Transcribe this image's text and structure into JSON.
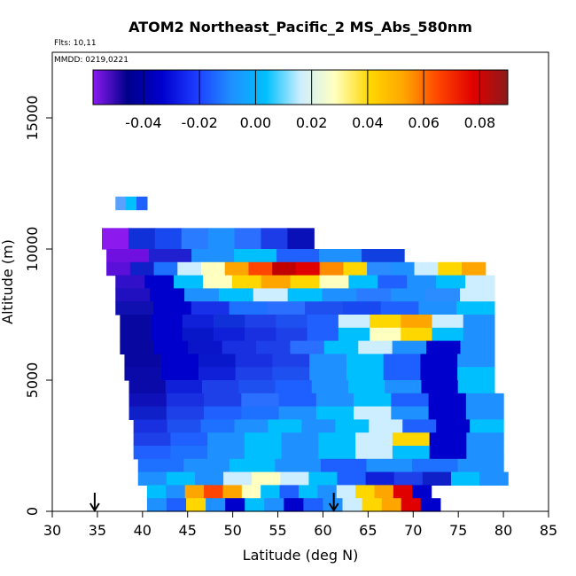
{
  "chart_data": {
    "type": "heatmap",
    "title": "ATOM2 Northeast_Pacific_2 MS_Abs_580nm",
    "flights_note": "Flts: 10,11",
    "dates_note": "MMDD: 0219,0221",
    "xlabel": "Latitude (deg N)",
    "ylabel": "Altitude (m)",
    "xlim": [
      30,
      85
    ],
    "ylim": [
      0,
      17500
    ],
    "x_ticks": [
      "30",
      "35",
      "40",
      "45",
      "50",
      "55",
      "60",
      "65",
      "70",
      "75",
      "80",
      "85"
    ],
    "y_ticks": [
      "0",
      "5000",
      "10000",
      "15000"
    ],
    "colorbar": {
      "range": [
        -0.058,
        0.09
      ],
      "tick_values": [
        -0.04,
        -0.02,
        0.0,
        0.02,
        0.04,
        0.06,
        0.08
      ],
      "tick_labels": [
        "-0.04",
        "-0.02",
        "0.00",
        "0.02",
        "0.04",
        "0.06",
        "0.08"
      ],
      "colors": [
        "#8c1aef",
        "#00008b",
        "#0000cd",
        "#1e3cff",
        "#1e90ff",
        "#00bfff",
        "#cdeeff",
        "#ffffc0",
        "#ffd700",
        "#ffa500",
        "#ff4500",
        "#e00000",
        "#8b1a1a"
      ]
    },
    "markers": [
      {
        "x": 34.7,
        "label": "down-arrow"
      },
      {
        "x": 61.2,
        "label": "down-arrow"
      }
    ],
    "bands": [
      {
        "alt": [
          11500,
          12000
        ],
        "lat": [
          37,
          40.5
        ],
        "colors": [
          "#5aa0ff",
          "#00bfff",
          "#2060ff"
        ]
      },
      {
        "alt": [
          10000,
          10800
        ],
        "lat": [
          35.5,
          59
        ],
        "colors": [
          "#8c1aef",
          "#1030d8",
          "#1848f0",
          "#2a7bff",
          "#1e90ff",
          "#2a6fff",
          "#1c3ce8",
          "#0a10b8"
        ]
      },
      {
        "alt": [
          9500,
          10000
        ],
        "lat": [
          36,
          69
        ],
        "colors": [
          "#7010e0",
          "#2020d0",
          "#1e90ff",
          "#00bfff",
          "#2060ff",
          "#1e90ff",
          "#1040e0"
        ]
      },
      {
        "alt": [
          9000,
          9500
        ],
        "lat": [
          36,
          78
        ],
        "colors": [
          "#5a10d8",
          "#1020c8",
          "#1e70ff",
          "#cdeeff",
          "#ffffc0",
          "#ffa500",
          "#ff4500",
          "#c00000",
          "#e00000",
          "#ff8c00",
          "#ffd700",
          "#2a8cff",
          "#1e90ff",
          "#cdeeff",
          "#ffd700",
          "#ffa500"
        ]
      },
      {
        "alt": [
          8500,
          9000
        ],
        "lat": [
          37,
          79
        ],
        "colors": [
          "#3010c8",
          "#0000cd",
          "#00bfff",
          "#ffffc0",
          "#ffd700",
          "#ffa500",
          "#ffd700",
          "#ffffc0",
          "#00bfff",
          "#2060ff",
          "#1e90ff",
          "#00bfff",
          "#cdeeff"
        ]
      },
      {
        "alt": [
          8000,
          8500
        ],
        "lat": [
          37,
          79
        ],
        "colors": [
          "#2010c0",
          "#0000cd",
          "#1e90ff",
          "#00bfff",
          "#cdeeff",
          "#00bfff",
          "#1e90ff",
          "#2a7bff",
          "#1e90ff",
          "#2a8cff",
          "#cdeeff"
        ]
      },
      {
        "alt": [
          7500,
          8000
        ],
        "lat": [
          37,
          79
        ],
        "colors": [
          "#1010b0",
          "#0000cd",
          "#1830e8",
          "#1e70ff",
          "#2a6fff",
          "#1e50f0",
          "#1848f0",
          "#2060ff",
          "#1e90ff",
          "#00bfff"
        ]
      },
      {
        "alt": [
          7000,
          7500
        ],
        "lat": [
          37.5,
          79
        ],
        "colors": [
          "#0808a0",
          "#0000cd",
          "#1020d8",
          "#1030d8",
          "#1e40e8",
          "#1e50f0",
          "#2060ff",
          "#cdeeff",
          "#ffd700",
          "#ffa500",
          "#cdeeff",
          "#1e90ff"
        ]
      },
      {
        "alt": [
          6500,
          7000
        ],
        "lat": [
          37.5,
          79
        ],
        "colors": [
          "#0808a0",
          "#0000cd",
          "#0818c8",
          "#1020d8",
          "#1830e0",
          "#1e40e8",
          "#2060ff",
          "#00bfff",
          "#ffffc0",
          "#ffd700",
          "#00bfff",
          "#1e90ff"
        ]
      },
      {
        "alt": [
          6000,
          6500
        ],
        "lat": [
          37.5,
          79
        ],
        "colors": [
          "#0808a0",
          "#0000cd",
          "#0a14c8",
          "#1830e0",
          "#1e40e8",
          "#2a6fff",
          "#00bfff",
          "#cdeeff",
          "#1e90ff",
          "#0000cd",
          "#1e90ff"
        ]
      },
      {
        "alt": [
          5500,
          6000
        ],
        "lat": [
          38,
          79
        ],
        "colors": [
          "#0808a0",
          "#0000cd",
          "#0a18cc",
          "#1830e0",
          "#1e40e8",
          "#1e90ff",
          "#00bfff",
          "#1e60ff",
          "#0000cd",
          "#1e90ff"
        ]
      },
      {
        "alt": [
          5000,
          5500
        ],
        "lat": [
          38,
          79
        ],
        "colors": [
          "#0a0aa8",
          "#0000cd",
          "#1020d8",
          "#1e40e8",
          "#1e50f0",
          "#1e90ff",
          "#00bfff",
          "#1e60ff",
          "#0000cd",
          "#00bfff"
        ]
      },
      {
        "alt": [
          4500,
          5000
        ],
        "lat": [
          38.5,
          79
        ],
        "colors": [
          "#0a0aa8",
          "#1020d8",
          "#1e40e8",
          "#1e50f0",
          "#1e60ff",
          "#1e90ff",
          "#00bfff",
          "#1e90ff",
          "#0000cd",
          "#00bfff"
        ]
      },
      {
        "alt": [
          4000,
          4500
        ],
        "lat": [
          38.5,
          80
        ],
        "colors": [
          "#1010b8",
          "#1830e0",
          "#1e40e8",
          "#2a6fff",
          "#1e60ff",
          "#1e90ff",
          "#00bfff",
          "#1e60ff",
          "#0000cd",
          "#1e90ff"
        ]
      },
      {
        "alt": [
          3500,
          4000
        ],
        "lat": [
          38.5,
          80
        ],
        "colors": [
          "#1020c8",
          "#1e40e8",
          "#2060ff",
          "#1e70ff",
          "#1e90ff",
          "#00bfff",
          "#cdeeff",
          "#1e90ff",
          "#0000cd",
          "#1e90ff"
        ]
      },
      {
        "alt": [
          3000,
          3500
        ],
        "lat": [
          39,
          80
        ],
        "colors": [
          "#1830e0",
          "#1e50f0",
          "#1e70ff",
          "#1e90ff",
          "#00bfff",
          "#1e90ff",
          "#00bfff",
          "#cdeeff",
          "#2060ff",
          "#0000cd",
          "#00bfff"
        ]
      },
      {
        "alt": [
          2500,
          3000
        ],
        "lat": [
          39,
          80
        ],
        "colors": [
          "#1e40e8",
          "#2060ff",
          "#1e90ff",
          "#00bfff",
          "#1e90ff",
          "#00bfff",
          "#cdeeff",
          "#ffd700",
          "#0000cd",
          "#1e90ff"
        ]
      },
      {
        "alt": [
          2000,
          2500
        ],
        "lat": [
          39,
          80
        ],
        "colors": [
          "#2060ff",
          "#1e70ff",
          "#1e90ff",
          "#00bfff",
          "#1e90ff",
          "#00bfff",
          "#cdeeff",
          "#00bfff",
          "#0000cd",
          "#1e90ff"
        ]
      },
      {
        "alt": [
          1500,
          2000
        ],
        "lat": [
          39.5,
          80
        ],
        "colors": [
          "#1e70ff",
          "#1e90ff",
          "#00bfff",
          "#1e90ff",
          "#1e60ff",
          "#1e90ff",
          "#1e70ff",
          "#1e90ff"
        ]
      },
      {
        "alt": [
          1000,
          1500
        ],
        "lat": [
          39.5,
          80.5
        ],
        "colors": [
          "#1e90ff",
          "#00bfff",
          "#1e90ff",
          "#cdeeff",
          "#ffffc0",
          "#cdeeff",
          "#00bfff",
          "#1e60ff",
          "#1020d8",
          "#1e40e8",
          "#1020c8",
          "#00bfff",
          "#1e90ff"
        ]
      },
      {
        "alt": [
          500,
          1000
        ],
        "lat": [
          40.5,
          72
        ],
        "colors": [
          "#00bfff",
          "#1e90ff",
          "#ffa500",
          "#ff4500",
          "#ffa500",
          "#ffffc0",
          "#00bfff",
          "#1e60ff",
          "#00bfff",
          "#1e90ff",
          "#cdeeff",
          "#ffd700",
          "#ffa500",
          "#e00000",
          "#0000cd"
        ]
      },
      {
        "alt": [
          0,
          500
        ],
        "lat": [
          40.5,
          73
        ],
        "colors": [
          "#1e90ff",
          "#1e60ff",
          "#ffd700",
          "#1e90ff",
          "#0000cd",
          "#00bfff",
          "#1e90ff",
          "#0000cd",
          "#1e60ff",
          "#1e90ff",
          "#cdeeff",
          "#ffd700",
          "#ffa500",
          "#e00000",
          "#0000cd"
        ]
      }
    ]
  }
}
